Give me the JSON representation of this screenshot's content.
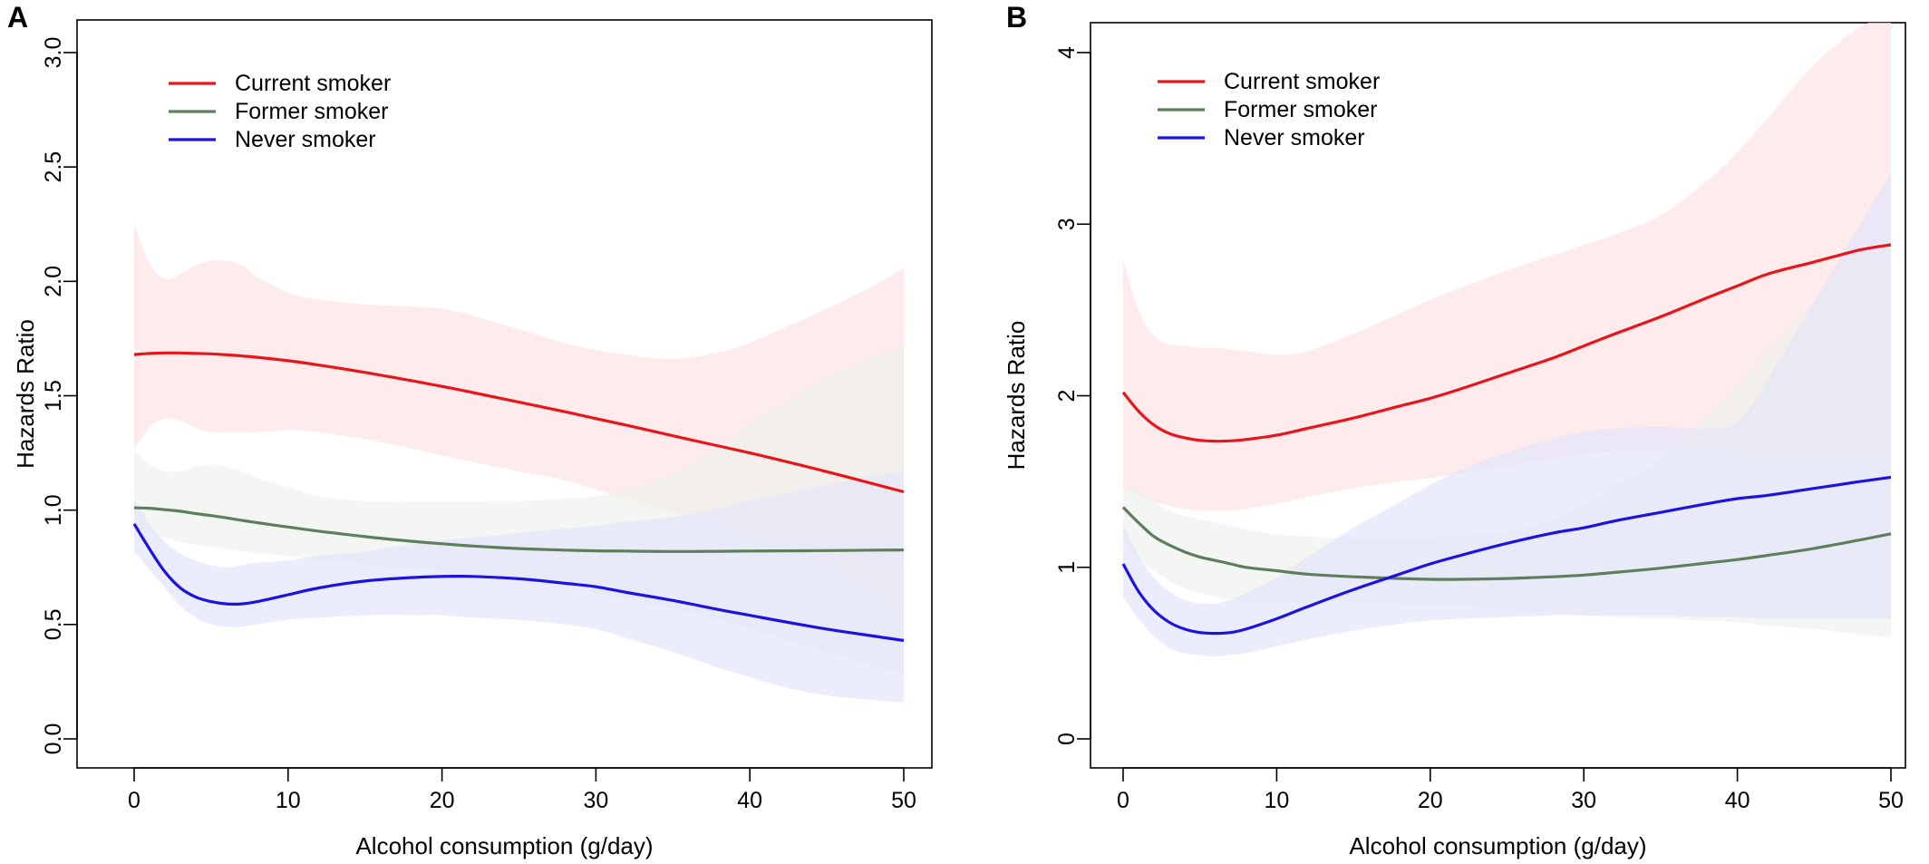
{
  "chart_data": [
    {
      "type": "line",
      "panel_label": "A",
      "xlabel": "Alcohol consumption (g/day)",
      "ylabel": "Hazards Ratio",
      "xlim": [
        0,
        50
      ],
      "ylim": [
        0,
        3
      ],
      "x_ticks": [
        "0",
        "10",
        "20",
        "30",
        "40",
        "50"
      ],
      "y_ticks": [
        "0.0",
        "0.5",
        "1.0",
        "1.5",
        "2.0",
        "2.5",
        "3.0"
      ],
      "legend_position": "top-left",
      "grid": false,
      "x": [
        0,
        1,
        2,
        3,
        4,
        5,
        6,
        7,
        8,
        10,
        12,
        15,
        18,
        20,
        22,
        25,
        28,
        30,
        32,
        35,
        38,
        40,
        42,
        45,
        48,
        50
      ],
      "series": [
        {
          "name": "Current smoker",
          "color": "#e8161b",
          "band_color": "#fde4e4",
          "values": [
            1.68,
            1.685,
            1.687,
            1.687,
            1.685,
            1.683,
            1.679,
            1.674,
            1.668,
            1.653,
            1.634,
            1.602,
            1.566,
            1.541,
            1.514,
            1.472,
            1.43,
            1.4,
            1.371,
            1.325,
            1.28,
            1.25,
            1.218,
            1.168,
            1.115,
            1.08
          ],
          "lower": [
            1.27,
            1.36,
            1.4,
            1.39,
            1.36,
            1.34,
            1.34,
            1.34,
            1.34,
            1.35,
            1.34,
            1.31,
            1.27,
            1.24,
            1.21,
            1.17,
            1.13,
            1.09,
            1.05,
            0.99,
            0.92,
            0.88,
            0.83,
            0.75,
            0.64,
            0.55
          ],
          "upper": [
            2.25,
            2.08,
            2.01,
            2.03,
            2.07,
            2.09,
            2.09,
            2.07,
            2.02,
            1.95,
            1.92,
            1.9,
            1.89,
            1.88,
            1.85,
            1.79,
            1.73,
            1.7,
            1.68,
            1.66,
            1.69,
            1.73,
            1.79,
            1.88,
            1.98,
            2.06
          ]
        },
        {
          "name": "Former smoker",
          "color": "#5e7f5e",
          "band_color": "#eef2ec",
          "values": [
            1.01,
            1.008,
            1.002,
            0.995,
            0.985,
            0.976,
            0.966,
            0.955,
            0.945,
            0.926,
            0.908,
            0.884,
            0.864,
            0.853,
            0.843,
            0.832,
            0.825,
            0.822,
            0.821,
            0.819,
            0.82,
            0.821,
            0.822,
            0.823,
            0.825,
            0.826
          ],
          "lower": [
            0.91,
            0.9,
            0.88,
            0.86,
            0.85,
            0.84,
            0.83,
            0.82,
            0.81,
            0.8,
            0.78,
            0.76,
            0.74,
            0.73,
            0.71,
            0.69,
            0.66,
            0.64,
            0.61,
            0.57,
            0.52,
            0.48,
            0.44,
            0.38,
            0.32,
            0.28
          ],
          "upper": [
            1.26,
            1.2,
            1.17,
            1.17,
            1.19,
            1.2,
            1.19,
            1.17,
            1.14,
            1.1,
            1.06,
            1.04,
            1.04,
            1.04,
            1.04,
            1.04,
            1.05,
            1.06,
            1.09,
            1.16,
            1.28,
            1.38,
            1.46,
            1.58,
            1.67,
            1.72
          ]
        },
        {
          "name": "Never smoker",
          "color": "#1c13e0",
          "band_color": "#e4e5fb",
          "values": [
            0.94,
            0.83,
            0.73,
            0.66,
            0.62,
            0.6,
            0.59,
            0.59,
            0.6,
            0.63,
            0.66,
            0.69,
            0.705,
            0.71,
            0.71,
            0.7,
            0.68,
            0.665,
            0.64,
            0.605,
            0.565,
            0.54,
            0.515,
            0.48,
            0.45,
            0.43
          ],
          "lower": [
            0.82,
            0.74,
            0.66,
            0.58,
            0.53,
            0.5,
            0.49,
            0.49,
            0.5,
            0.52,
            0.53,
            0.54,
            0.54,
            0.54,
            0.53,
            0.52,
            0.5,
            0.48,
            0.44,
            0.38,
            0.31,
            0.27,
            0.23,
            0.19,
            0.17,
            0.16
          ],
          "upper": [
            1.05,
            0.94,
            0.86,
            0.81,
            0.78,
            0.76,
            0.75,
            0.76,
            0.77,
            0.78,
            0.8,
            0.82,
            0.85,
            0.87,
            0.88,
            0.9,
            0.92,
            0.93,
            0.95,
            0.97,
            1.01,
            1.04,
            1.07,
            1.11,
            1.15,
            1.17
          ]
        }
      ]
    },
    {
      "type": "line",
      "panel_label": "B",
      "xlabel": "Alcohol consumption (g/day)",
      "ylabel": "Hazards Ratio",
      "xlim": [
        0,
        50
      ],
      "ylim": [
        0,
        4
      ],
      "x_ticks": [
        "0",
        "10",
        "20",
        "30",
        "40",
        "50"
      ],
      "y_ticks": [
        "0",
        "1",
        "2",
        "3",
        "4"
      ],
      "legend_position": "top-left",
      "grid": false,
      "x": [
        0,
        1,
        2,
        3,
        4,
        5,
        6,
        7,
        8,
        10,
        12,
        15,
        18,
        20,
        22,
        25,
        28,
        30,
        32,
        35,
        38,
        40,
        42,
        45,
        48,
        50
      ],
      "series": [
        {
          "name": "Current smoker",
          "color": "#e8161b",
          "band_color": "#fde4e4",
          "values": [
            2.02,
            1.91,
            1.83,
            1.78,
            1.755,
            1.74,
            1.735,
            1.737,
            1.745,
            1.77,
            1.81,
            1.87,
            1.94,
            1.985,
            2.04,
            2.13,
            2.22,
            2.29,
            2.36,
            2.46,
            2.57,
            2.64,
            2.71,
            2.78,
            2.85,
            2.88
          ],
          "lower": [
            1.45,
            1.42,
            1.38,
            1.36,
            1.34,
            1.33,
            1.33,
            1.33,
            1.34,
            1.37,
            1.41,
            1.46,
            1.5,
            1.52,
            1.55,
            1.59,
            1.63,
            1.66,
            1.68,
            1.68,
            1.66,
            1.65,
            1.64,
            1.63,
            1.62,
            1.62
          ],
          "upper": [
            2.8,
            2.5,
            2.35,
            2.3,
            2.29,
            2.28,
            2.28,
            2.27,
            2.26,
            2.24,
            2.26,
            2.36,
            2.48,
            2.56,
            2.63,
            2.73,
            2.82,
            2.88,
            2.94,
            3.05,
            3.25,
            3.42,
            3.62,
            3.93,
            4.15,
            4.2
          ]
        },
        {
          "name": "Former smoker",
          "color": "#5e7f5e",
          "band_color": "#eef2ec",
          "values": [
            1.35,
            1.26,
            1.18,
            1.13,
            1.09,
            1.06,
            1.04,
            1.02,
            1.0,
            0.98,
            0.96,
            0.945,
            0.935,
            0.93,
            0.93,
            0.935,
            0.945,
            0.955,
            0.97,
            0.995,
            1.025,
            1.045,
            1.07,
            1.11,
            1.16,
            1.195
          ],
          "lower": [
            1.15,
            1.05,
            0.98,
            0.92,
            0.88,
            0.85,
            0.83,
            0.81,
            0.8,
            0.8,
            0.8,
            0.8,
            0.79,
            0.78,
            0.77,
            0.75,
            0.73,
            0.72,
            0.71,
            0.7,
            0.69,
            0.68,
            0.66,
            0.64,
            0.61,
            0.59
          ],
          "upper": [
            1.47,
            1.45,
            1.38,
            1.33,
            1.3,
            1.28,
            1.26,
            1.24,
            1.22,
            1.19,
            1.18,
            1.17,
            1.17,
            1.17,
            1.18,
            1.21,
            1.28,
            1.36,
            1.47,
            1.63,
            1.88,
            2.06,
            2.26,
            2.55,
            2.82,
            3.0
          ]
        },
        {
          "name": "Never smoker",
          "color": "#1c13e0",
          "band_color": "#e4e5fb",
          "values": [
            1.02,
            0.86,
            0.75,
            0.68,
            0.64,
            0.62,
            0.615,
            0.62,
            0.64,
            0.7,
            0.77,
            0.87,
            0.96,
            1.02,
            1.07,
            1.14,
            1.2,
            1.23,
            1.27,
            1.32,
            1.37,
            1.4,
            1.42,
            1.46,
            1.5,
            1.525
          ],
          "lower": [
            0.83,
            0.7,
            0.6,
            0.53,
            0.5,
            0.49,
            0.48,
            0.49,
            0.5,
            0.54,
            0.58,
            0.63,
            0.67,
            0.69,
            0.7,
            0.71,
            0.72,
            0.72,
            0.72,
            0.72,
            0.71,
            0.71,
            0.7,
            0.7,
            0.7,
            0.7
          ],
          "upper": [
            1.25,
            1.07,
            0.94,
            0.86,
            0.81,
            0.79,
            0.79,
            0.81,
            0.85,
            0.94,
            1.06,
            1.23,
            1.38,
            1.48,
            1.57,
            1.67,
            1.75,
            1.79,
            1.81,
            1.82,
            1.81,
            1.85,
            2.1,
            2.55,
            3.0,
            3.3
          ]
        }
      ]
    }
  ]
}
